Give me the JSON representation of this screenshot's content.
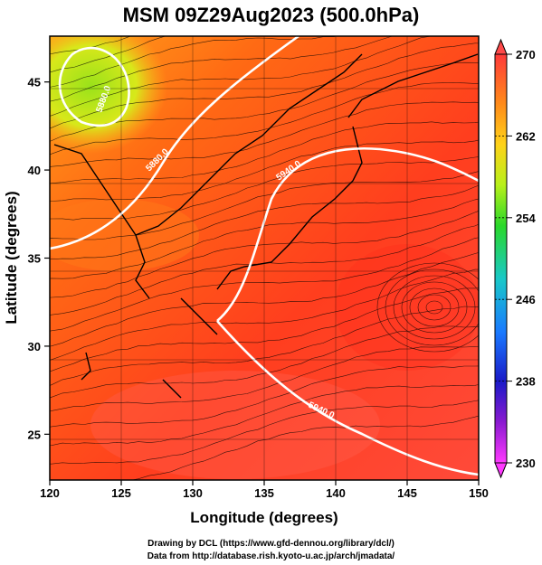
{
  "title": "MSM 09Z29Aug2023 (500.0hPa)",
  "map": {
    "x_axis": {
      "label": "Longitude (degrees)",
      "range": [
        120,
        150
      ],
      "ticks": [
        "120",
        "125",
        "130",
        "135",
        "140",
        "145",
        "150"
      ]
    },
    "y_axis": {
      "label": "Latitude  (degrees)",
      "range": [
        22.4,
        47.6
      ],
      "ticks": [
        "25",
        "30",
        "35",
        "40",
        "45"
      ]
    },
    "field": "temperature shading with streamlines of wind",
    "contour_labels": [
      "5880.0",
      "5880.0",
      "5940.0",
      "5940.0"
    ],
    "colorbar": {
      "ticks": [
        "270",
        "262",
        "254",
        "246",
        "238",
        "230"
      ],
      "range": [
        230,
        270
      ],
      "colors": [
        "#ff2a6a",
        "#ff3a3a",
        "#ff7a1a",
        "#ffc21a",
        "#d8f01a",
        "#4fe04f",
        "#19c8c8",
        "#1a7aff",
        "#1a2ad8",
        "#b01ad0",
        "#ff3aff"
      ]
    }
  },
  "credits": {
    "line1": "Drawing by DCL (https://www.gfd-dennou.org/library/dcl/)",
    "line2": "Data from http://database.rish.kyoto-u.ac.jp/arch/jmadata/"
  }
}
